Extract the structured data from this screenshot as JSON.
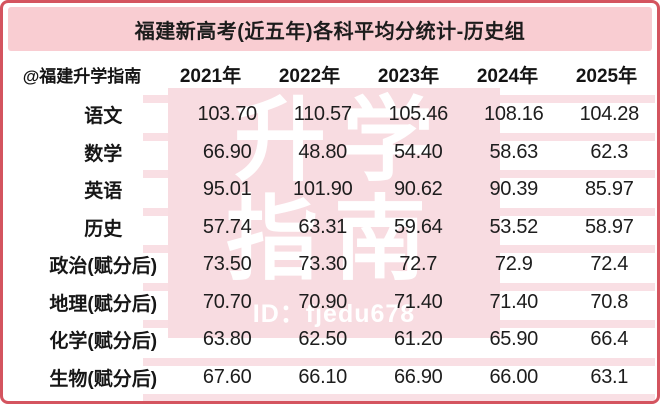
{
  "title": "福建新高考(近五年)各科平均分统计-历史组",
  "table": {
    "corner_label": "@福建升学指南",
    "year_headers": [
      "2021年",
      "2022年",
      "2023年",
      "2024年",
      "2025年"
    ],
    "rows": [
      {
        "subject": "语文",
        "values": [
          "103.70",
          "110.57",
          "105.46",
          "108.16",
          "104.28"
        ]
      },
      {
        "subject": "数学",
        "values": [
          "66.90",
          "48.80",
          "54.40",
          "58.63",
          "62.3"
        ]
      },
      {
        "subject": "英语",
        "values": [
          "95.01",
          "101.90",
          "90.62",
          "90.39",
          "85.97"
        ]
      },
      {
        "subject": "历史",
        "values": [
          "57.74",
          "63.31",
          "59.64",
          "53.52",
          "58.97"
        ]
      },
      {
        "subject": "政治(赋分后)",
        "values": [
          "73.50",
          "73.30",
          "72.7",
          "72.9",
          "72.4"
        ]
      },
      {
        "subject": "地理(赋分后)",
        "values": [
          "70.70",
          "70.90",
          "71.40",
          "71.40",
          "70.8"
        ]
      },
      {
        "subject": "化学(赋分后)",
        "values": [
          "63.80",
          "62.50",
          "61.20",
          "65.90",
          "66.4"
        ]
      },
      {
        "subject": "生物(赋分后)",
        "values": [
          "67.60",
          "66.10",
          "66.90",
          "66.00",
          "63.1"
        ]
      }
    ]
  },
  "watermark": {
    "big_text_line1": "升学",
    "big_text_line2": "指南",
    "id_text": "ID：fjedu678"
  },
  "colors": {
    "border_red": "#d4545f",
    "title_band_pink": "#f9cdd2",
    "watermark_pink": "#f8dce1",
    "stripe_pink": "#f9dfe4",
    "text_black": "#1c1c1c",
    "watermark_text_white": "#ffffff"
  },
  "chart_data": {
    "type": "table",
    "title": "福建新高考(近五年)各科平均分统计-历史组",
    "categories": [
      "2021年",
      "2022年",
      "2023年",
      "2024年",
      "2025年"
    ],
    "series": [
      {
        "name": "语文",
        "values": [
          103.7,
          110.57,
          105.46,
          108.16,
          104.28
        ]
      },
      {
        "name": "数学",
        "values": [
          66.9,
          48.8,
          54.4,
          58.63,
          62.3
        ]
      },
      {
        "name": "英语",
        "values": [
          95.01,
          101.9,
          90.62,
          90.39,
          85.97
        ]
      },
      {
        "name": "历史",
        "values": [
          57.74,
          63.31,
          59.64,
          53.52,
          58.97
        ]
      },
      {
        "name": "政治(赋分后)",
        "values": [
          73.5,
          73.3,
          72.7,
          72.9,
          72.4
        ]
      },
      {
        "name": "地理(赋分后)",
        "values": [
          70.7,
          70.9,
          71.4,
          71.4,
          70.8
        ]
      },
      {
        "name": "化学(赋分后)",
        "values": [
          63.8,
          62.5,
          61.2,
          65.9,
          66.4
        ]
      },
      {
        "name": "生物(赋分后)",
        "values": [
          67.6,
          66.1,
          66.9,
          66.0,
          63.1
        ]
      }
    ]
  }
}
